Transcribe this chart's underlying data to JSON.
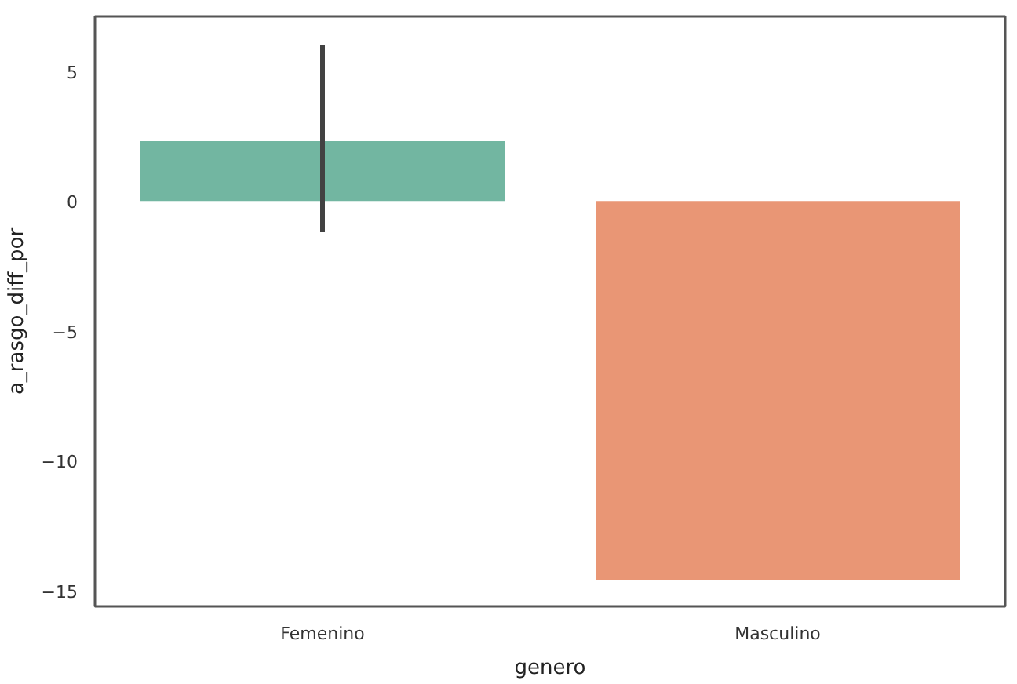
{
  "chart_data": {
    "type": "bar",
    "xlabel": "genero",
    "ylabel": "a_rasgo_diff_por",
    "categories": [
      "Femenino",
      "Masculino"
    ],
    "values": [
      2.3,
      -14.6
    ],
    "colors": [
      "#72b6a1",
      "#e99675"
    ],
    "errors": [
      [
        -1.2,
        6.0
      ],
      null
    ],
    "ylim": [
      -15.6,
      7.1
    ],
    "yticks": [
      {
        "value": -15,
        "label": "−15"
      },
      {
        "value": -10,
        "label": "−10"
      },
      {
        "value": -5,
        "label": "−5"
      },
      0,
      5
    ],
    "grid": false
  }
}
